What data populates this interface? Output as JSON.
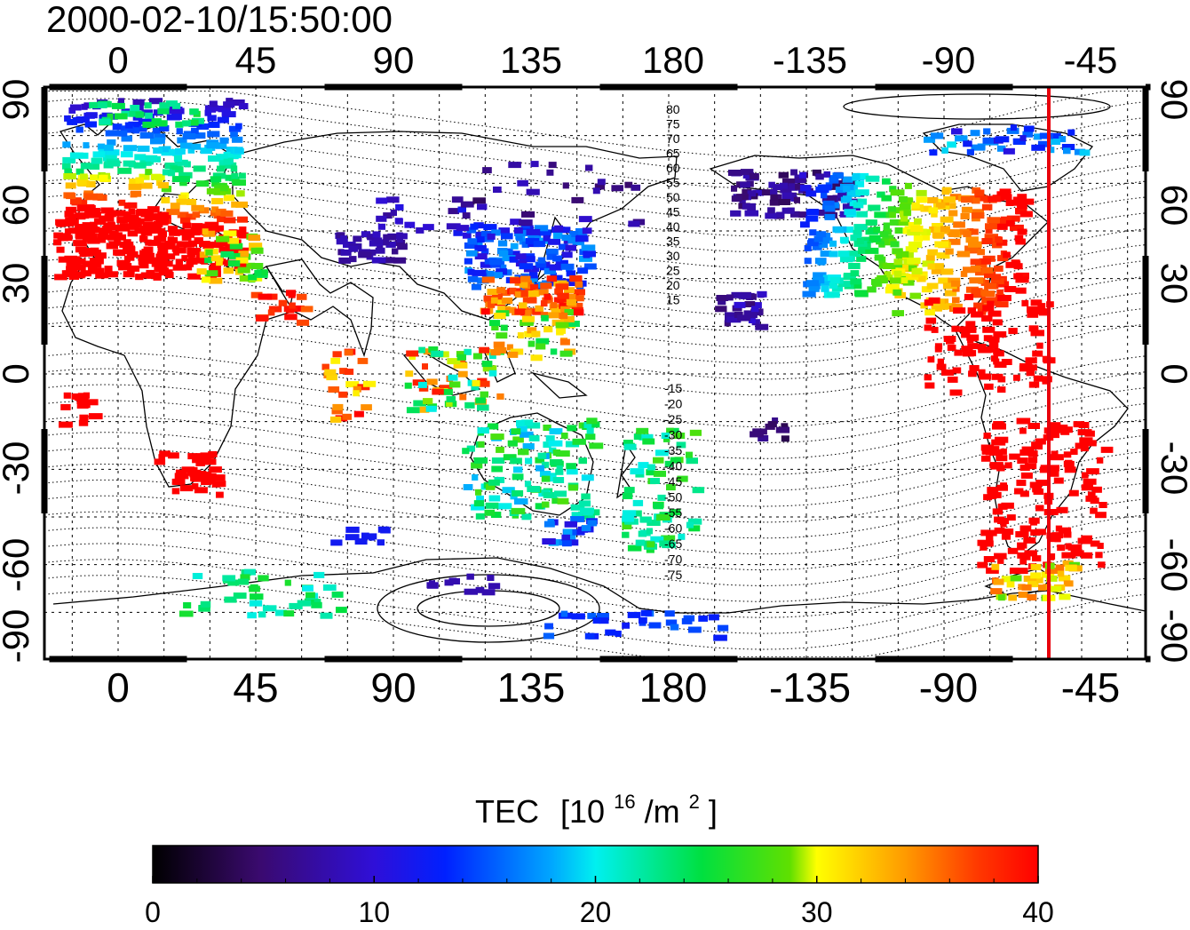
{
  "timestamp": "2000-02-10/15:50:00",
  "top_lon_labels": [
    "0",
    "45",
    "90",
    "135",
    "180",
    "-135",
    "-90",
    "-45"
  ],
  "bottom_lon_labels": [
    "0",
    "45",
    "90",
    "135",
    "180",
    "-135",
    "-90",
    "-45"
  ],
  "lat_labels": [
    "90",
    "60",
    "30",
    "0",
    "-30",
    "-60",
    "-90"
  ],
  "contour_labels_north": [
    "80",
    "75",
    "70",
    "65",
    "60",
    "55",
    "50",
    "45",
    "40",
    "35",
    "30",
    "25",
    "20",
    "15"
  ],
  "contour_labels_south": [
    "-15",
    "-20",
    "-25",
    "-30",
    "-35",
    "-40",
    "-45",
    "-50",
    "-55",
    "-60",
    "-65",
    "-70",
    "-75"
  ],
  "colorbar": {
    "title": "TEC",
    "unit_base": "[10",
    "unit_exp": "16",
    "unit_mid": "/m",
    "unit_exp2": "2",
    "unit_end": "]",
    "ticks": [
      "0",
      "10",
      "20",
      "30",
      "40"
    ]
  },
  "map": {
    "lon_center_deg": 135,
    "lat_range": [
      -90,
      90
    ],
    "marker_longitude_deg": -57,
    "marker_color": "#e8000b",
    "coastline_color": "#000000"
  }
}
